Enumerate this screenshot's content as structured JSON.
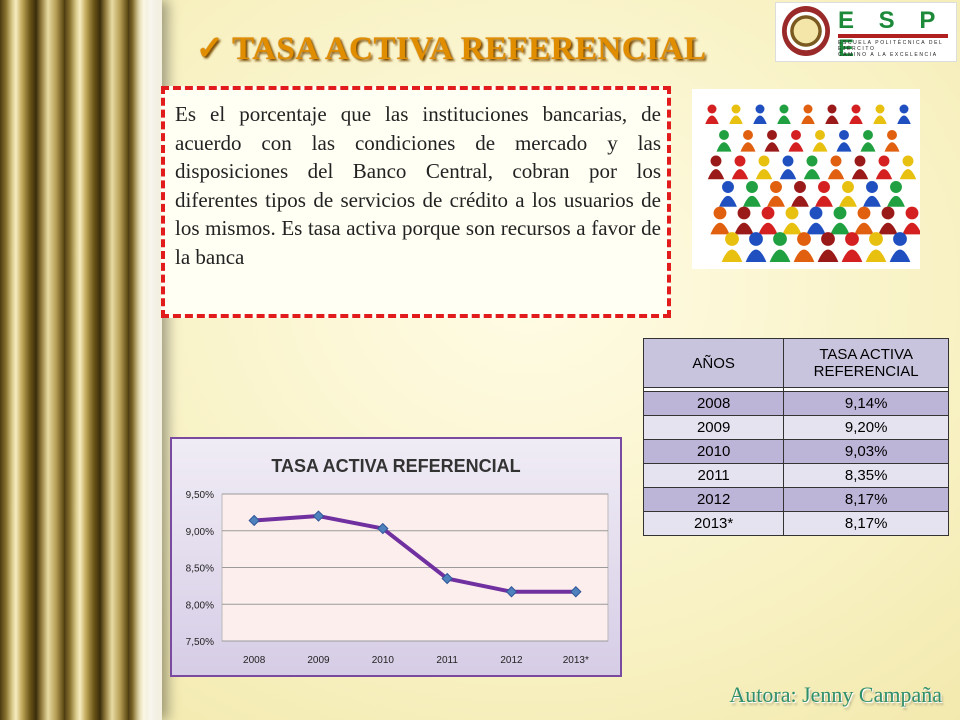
{
  "slide": {
    "title_check": "✓",
    "title": "TASA ACTIVA REFERENCIAL",
    "definition": "Es el porcentaje que las instituciones bancarias, de acuerdo con las condiciones de mercado y las disposiciones del Banco Central, cobran por los diferentes tipos de servicios de crédito a los usuarios de los mismos. Es tasa activa porque son recursos a favor de la banca",
    "author": "Autora: Jenny Campaña"
  },
  "logo": {
    "name": "E S P E",
    "subtitle": "ESCUELA POLITÉCNICA DEL EJÉRCITO",
    "tagline": "CAMINO A LA EXCELENCIA"
  },
  "table": {
    "headers": [
      "AÑOS",
      "TASA ACTIVA REFERENCIAL"
    ],
    "rows": [
      [
        "2008",
        "9,14%"
      ],
      [
        "2009",
        "9,20%"
      ],
      [
        "2010",
        "9,03%"
      ],
      [
        "2011",
        "8,35%"
      ],
      [
        "2012",
        "8,17%"
      ],
      [
        "2013*",
        "8,17%"
      ]
    ]
  },
  "colors": {
    "title": "#e08e00",
    "line": "#7030a0",
    "marker": "#4f81bd",
    "dashed_border": "#e21c1c"
  },
  "chart_data": {
    "type": "line",
    "title": "TASA ACTIVA REFERENCIAL",
    "categories": [
      "2008",
      "2009",
      "2010",
      "2011",
      "2012",
      "2013*"
    ],
    "series": [
      {
        "values": [
          9.14,
          9.2,
          9.03,
          8.35,
          8.17,
          8.17
        ]
      }
    ],
    "yticks": [
      "9,50%",
      "9,00%",
      "8,50%",
      "8,00%",
      "7,50%"
    ],
    "ylim": [
      7.5,
      9.5
    ],
    "grid": true,
    "legend": false
  }
}
